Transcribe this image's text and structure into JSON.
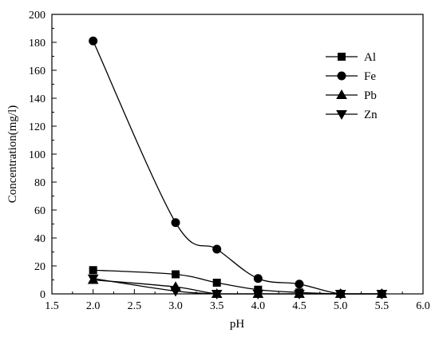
{
  "chart_data": {
    "type": "line",
    "xlabel": "pH",
    "ylabel": "Concentration(mg/l)",
    "xlim": [
      1.5,
      6.0
    ],
    "ylim": [
      0,
      200
    ],
    "x_ticks": [
      "1.5",
      "2.0",
      "2.5",
      "3.0",
      "3.5",
      "4.0",
      "4.5",
      "5.0",
      "5.5",
      "6.0"
    ],
    "y_ticks": [
      "0",
      "20",
      "40",
      "60",
      "80",
      "100",
      "120",
      "140",
      "160",
      "180",
      "200"
    ],
    "x": [
      2.0,
      3.0,
      3.5,
      4.0,
      4.5,
      5.0,
      5.5
    ],
    "grid": false,
    "legend_position": "top-right",
    "series": [
      {
        "name": "Al",
        "marker": "square",
        "values": [
          17,
          14,
          8,
          3,
          1,
          0,
          0
        ]
      },
      {
        "name": "Fe",
        "marker": "circle",
        "values": [
          181,
          51,
          32,
          11,
          7,
          0,
          0
        ]
      },
      {
        "name": "Pb",
        "marker": "triangle-up",
        "values": [
          10,
          5,
          0,
          0,
          0,
          0,
          0
        ]
      },
      {
        "name": "Zn",
        "marker": "triangle-down",
        "values": [
          11,
          2,
          0,
          0,
          0,
          0,
          0
        ]
      }
    ]
  }
}
